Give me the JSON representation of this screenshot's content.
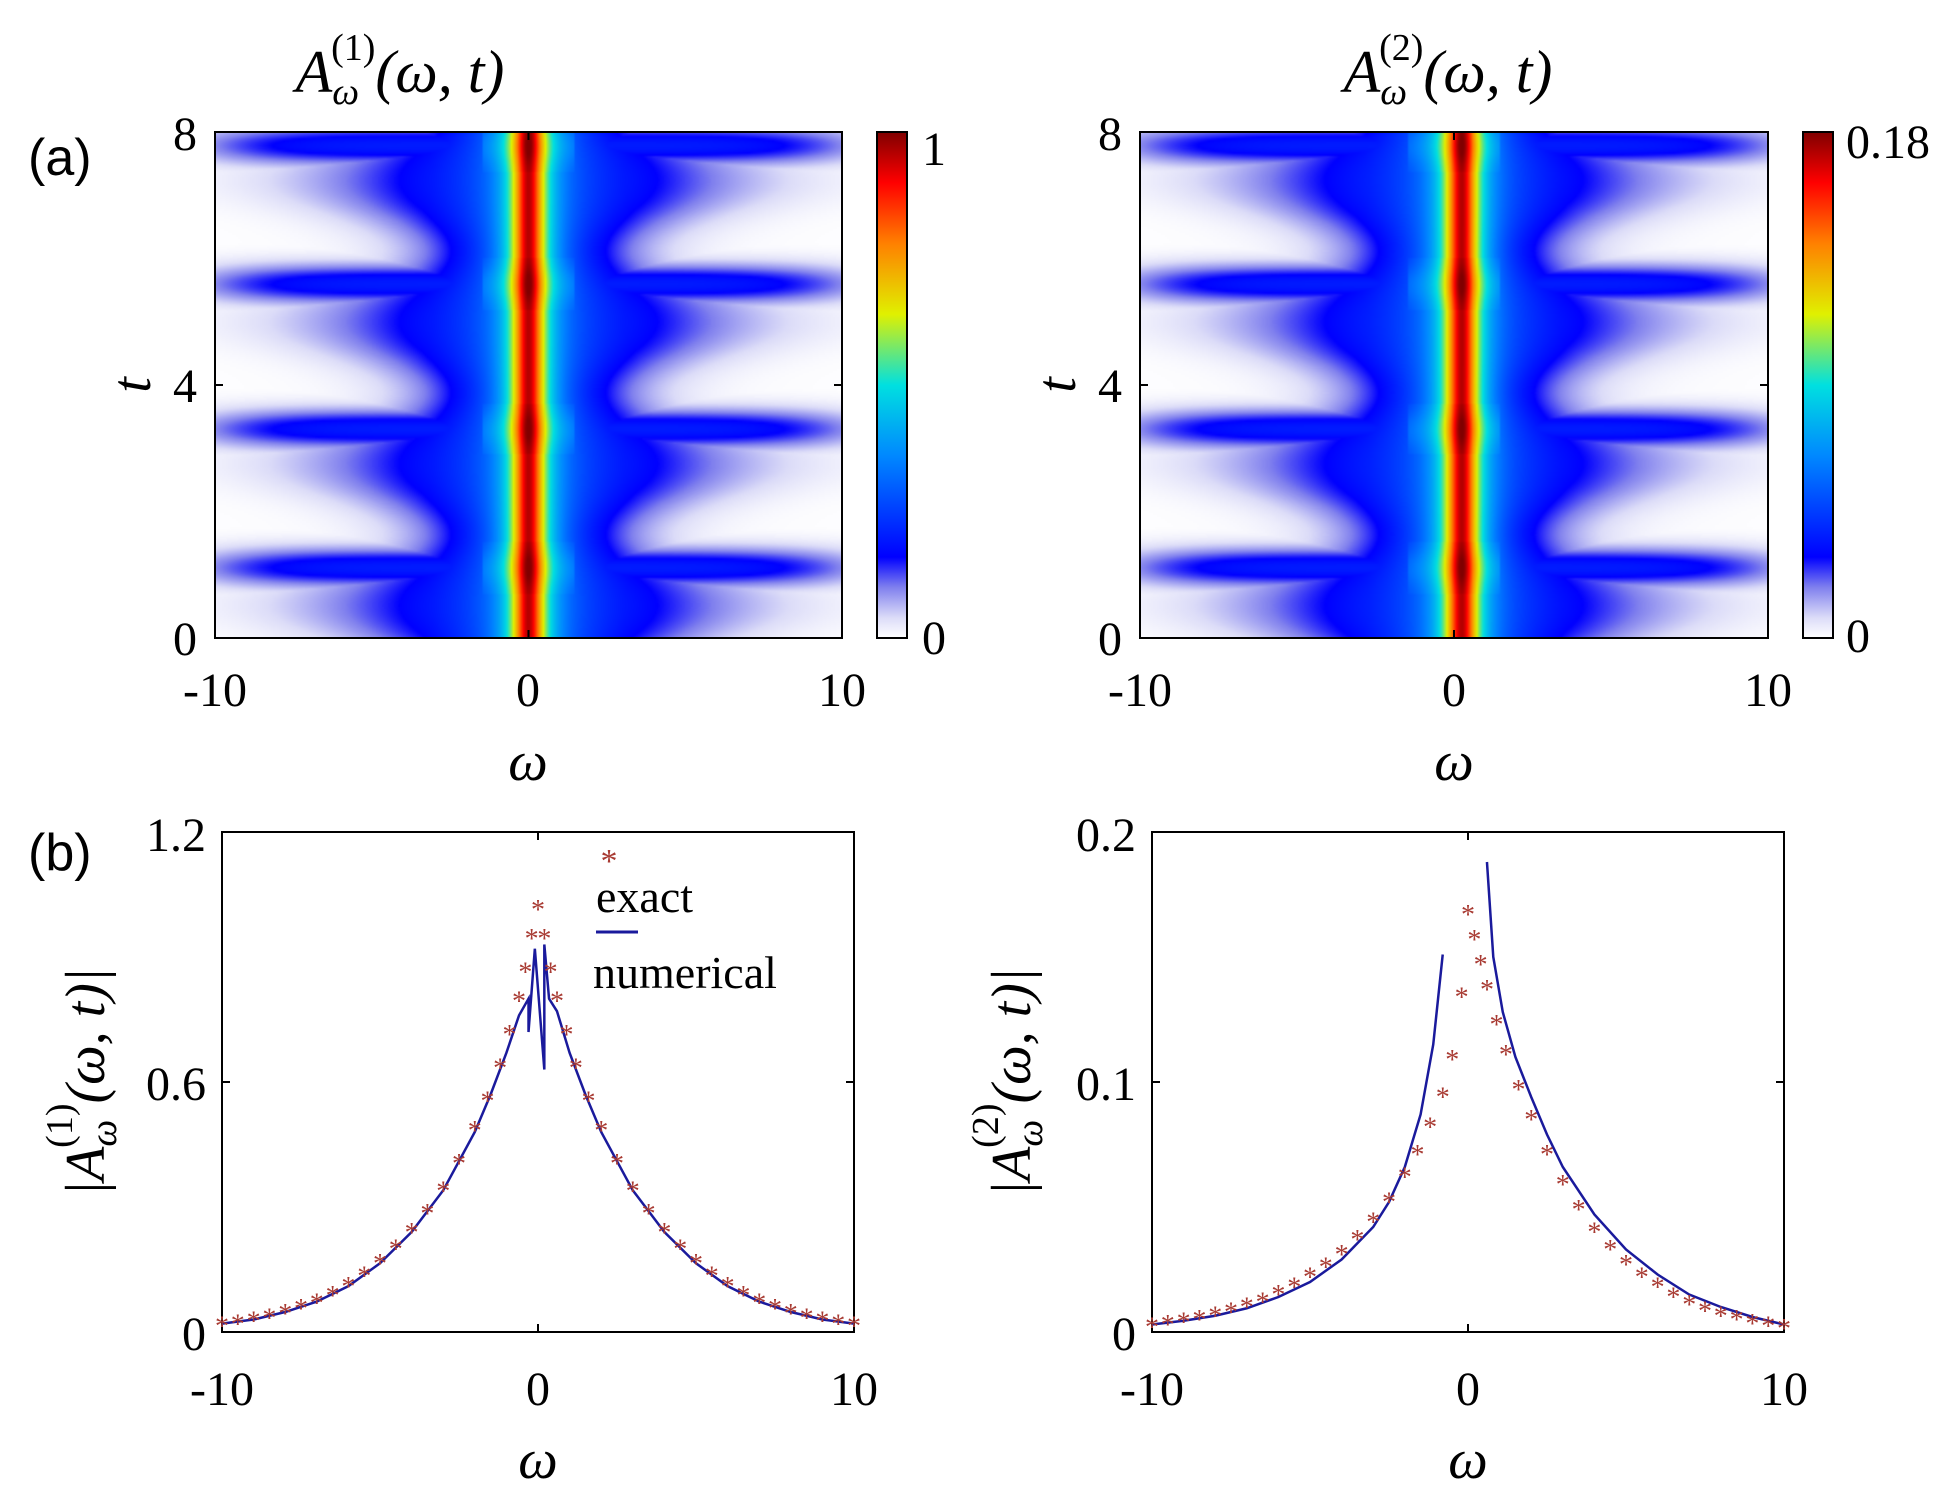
{
  "panel_labels": {
    "a": "(a)",
    "b": "(b)"
  },
  "colors": {
    "axis": "#000000",
    "exact": "#a83a32",
    "numerical": "#1a1a9c"
  },
  "chart_data": [
    {
      "id": "a1",
      "type": "heatmap",
      "title": "A_ω^(1)(ω, t)",
      "title_main": "A",
      "title_sub": "ω",
      "title_sup": "(1)",
      "title_args": "(ω, t)",
      "xlabel": "ω",
      "ylabel": "t",
      "xlim": [
        -10,
        10
      ],
      "ylim": [
        0,
        8
      ],
      "xticks": [
        -10,
        0,
        10
      ],
      "xtick_labels": [
        "-10",
        "0",
        "10"
      ],
      "yticks": [
        0,
        4,
        8
      ],
      "ytick_labels": [
        "0",
        "4",
        "8"
      ],
      "colorbar": {
        "min": 0,
        "max": 1,
        "min_label": "0",
        "max_label": "1",
        "colormap": "jet-white"
      },
      "peak_times": [
        1.1,
        3.3,
        5.6,
        7.8
      ],
      "center_ridge_offset": 0,
      "description_of_field": "bright ridge along ω=0 flanked by blue lobes that widen periodically at the peak times"
    },
    {
      "id": "a2",
      "type": "heatmap",
      "title": "A_ω^(2)(ω, t)",
      "title_main": "A",
      "title_sub": "ω",
      "title_sup": "(2)",
      "title_args": "(ω, t)",
      "xlabel": "ω",
      "ylabel": "t",
      "xlim": [
        -10,
        10
      ],
      "ylim": [
        0,
        8
      ],
      "xticks": [
        -10,
        0,
        10
      ],
      "xtick_labels": [
        "-10",
        "0",
        "10"
      ],
      "yticks": [
        0,
        4,
        8
      ],
      "ytick_labels": [
        "0",
        "4",
        "8"
      ],
      "colorbar": {
        "min": 0,
        "max": 0.18,
        "min_label": "0",
        "max_label": "0.18",
        "colormap": "jet-white"
      },
      "peak_times": [
        1.1,
        3.3,
        5.6,
        7.8
      ],
      "center_ridge_offset": 0.25
    },
    {
      "id": "b1",
      "type": "scatter+line",
      "ylabel_main": "A",
      "ylabel_sub": "ω",
      "ylabel_sup": "(1)",
      "ylabel_args": "(ω, t)",
      "xlabel": "ω",
      "xlim": [
        -10,
        10
      ],
      "ylim": [
        0,
        1.2
      ],
      "xticks": [
        -10,
        0,
        10
      ],
      "xtick_labels": [
        "-10",
        "0",
        "10"
      ],
      "yticks": [
        0,
        0.6,
        1.2
      ],
      "ytick_labels": [
        "0",
        "0.6",
        "1.2"
      ],
      "legend": {
        "position": "top-right",
        "entries": [
          "exact",
          "numerical"
        ]
      },
      "series": [
        {
          "name": "exact",
          "style": "asterisk",
          "x": [
            -10,
            -9.5,
            -9,
            -8.5,
            -8,
            -7.5,
            -7,
            -6.5,
            -6,
            -5.5,
            -5,
            -4.5,
            -4,
            -3.5,
            -3,
            -2.5,
            -2,
            -1.6,
            -1.2,
            -0.9,
            -0.6,
            -0.4,
            -0.2,
            0,
            0.2,
            0.4,
            0.6,
            0.9,
            1.2,
            1.6,
            2,
            2.5,
            3,
            3.5,
            4,
            4.5,
            5,
            5.5,
            6,
            6.5,
            7,
            7.5,
            8,
            8.5,
            9,
            9.5,
            10
          ],
          "y": [
            0.02,
            0.025,
            0.032,
            0.04,
            0.05,
            0.062,
            0.076,
            0.094,
            0.115,
            0.14,
            0.17,
            0.205,
            0.245,
            0.29,
            0.345,
            0.41,
            0.49,
            0.56,
            0.64,
            0.72,
            0.8,
            0.87,
            0.95,
            1.02,
            0.95,
            0.87,
            0.8,
            0.72,
            0.64,
            0.56,
            0.49,
            0.41,
            0.345,
            0.29,
            0.245,
            0.205,
            0.17,
            0.14,
            0.115,
            0.094,
            0.076,
            0.062,
            0.05,
            0.04,
            0.032,
            0.025,
            0.02
          ]
        },
        {
          "name": "numerical",
          "style": "line",
          "x": [
            -10,
            -9,
            -8,
            -7,
            -6,
            -5,
            -4,
            -3,
            -2,
            -1.5,
            -1,
            -0.6,
            -0.3,
            -0.3,
            -0.1,
            0.2,
            0.2,
            0.35,
            0.6,
            1,
            1.5,
            2,
            3,
            4,
            5,
            6,
            7,
            8,
            9,
            10
          ],
          "y": [
            0.02,
            0.03,
            0.048,
            0.073,
            0.11,
            0.165,
            0.24,
            0.34,
            0.48,
            0.57,
            0.67,
            0.76,
            0.8,
            0.72,
            0.92,
            0.63,
            0.93,
            0.8,
            0.77,
            0.67,
            0.57,
            0.48,
            0.34,
            0.24,
            0.165,
            0.11,
            0.073,
            0.048,
            0.03,
            0.02
          ]
        }
      ]
    },
    {
      "id": "b2",
      "type": "scatter+line",
      "ylabel_main": "A",
      "ylabel_sub": "ω",
      "ylabel_sup": "(2)",
      "ylabel_args": "(ω, t)",
      "xlabel": "ω",
      "xlim": [
        -10,
        10
      ],
      "ylim": [
        0,
        0.2
      ],
      "xticks": [
        -10,
        0,
        10
      ],
      "xtick_labels": [
        "-10",
        "0",
        "10"
      ],
      "yticks": [
        0,
        0.1,
        0.2
      ],
      "ytick_labels": [
        "0",
        "0.1",
        "0.2"
      ],
      "series": [
        {
          "name": "exact",
          "style": "asterisk",
          "x": [
            -10,
            -9.5,
            -9,
            -8.5,
            -8,
            -7.5,
            -7,
            -6.5,
            -6,
            -5.5,
            -5,
            -4.5,
            -4,
            -3.5,
            -3,
            -2.5,
            -2,
            -1.6,
            -1.2,
            -0.8,
            -0.5,
            -0.2,
            0,
            0.2,
            0.4,
            0.6,
            0.9,
            1.2,
            1.6,
            2,
            2.5,
            3,
            3.5,
            4,
            4.5,
            5,
            5.5,
            6,
            6.5,
            7,
            7.5,
            8,
            8.5,
            9,
            9.5,
            10
          ],
          "y": [
            0.003,
            0.004,
            0.005,
            0.006,
            0.0075,
            0.009,
            0.011,
            0.013,
            0.016,
            0.019,
            0.023,
            0.027,
            0.032,
            0.038,
            0.045,
            0.053,
            0.063,
            0.072,
            0.083,
            0.095,
            0.11,
            0.135,
            0.168,
            0.158,
            0.148,
            0.138,
            0.124,
            0.112,
            0.098,
            0.086,
            0.072,
            0.06,
            0.05,
            0.041,
            0.034,
            0.028,
            0.023,
            0.019,
            0.015,
            0.012,
            0.0095,
            0.0075,
            0.006,
            0.0045,
            0.0035,
            0.0025
          ]
        },
        {
          "name": "numerical",
          "style": "line",
          "segments": 2,
          "x": [
            -10,
            -9,
            -8,
            -7,
            -6,
            -5,
            -4,
            -3,
            -2.5,
            -2,
            -1.5,
            -1.1,
            -0.8,
            0.6,
            0.8,
            1.1,
            1.5,
            2,
            2.5,
            3,
            4,
            5,
            6,
            7,
            8,
            9,
            10
          ],
          "y": [
            0.003,
            0.0045,
            0.0065,
            0.0095,
            0.014,
            0.02,
            0.029,
            0.042,
            0.052,
            0.066,
            0.087,
            0.115,
            0.151,
            0.188,
            0.15,
            0.128,
            0.11,
            0.094,
            0.079,
            0.066,
            0.047,
            0.033,
            0.023,
            0.015,
            0.01,
            0.006,
            0.003
          ]
        }
      ]
    }
  ]
}
